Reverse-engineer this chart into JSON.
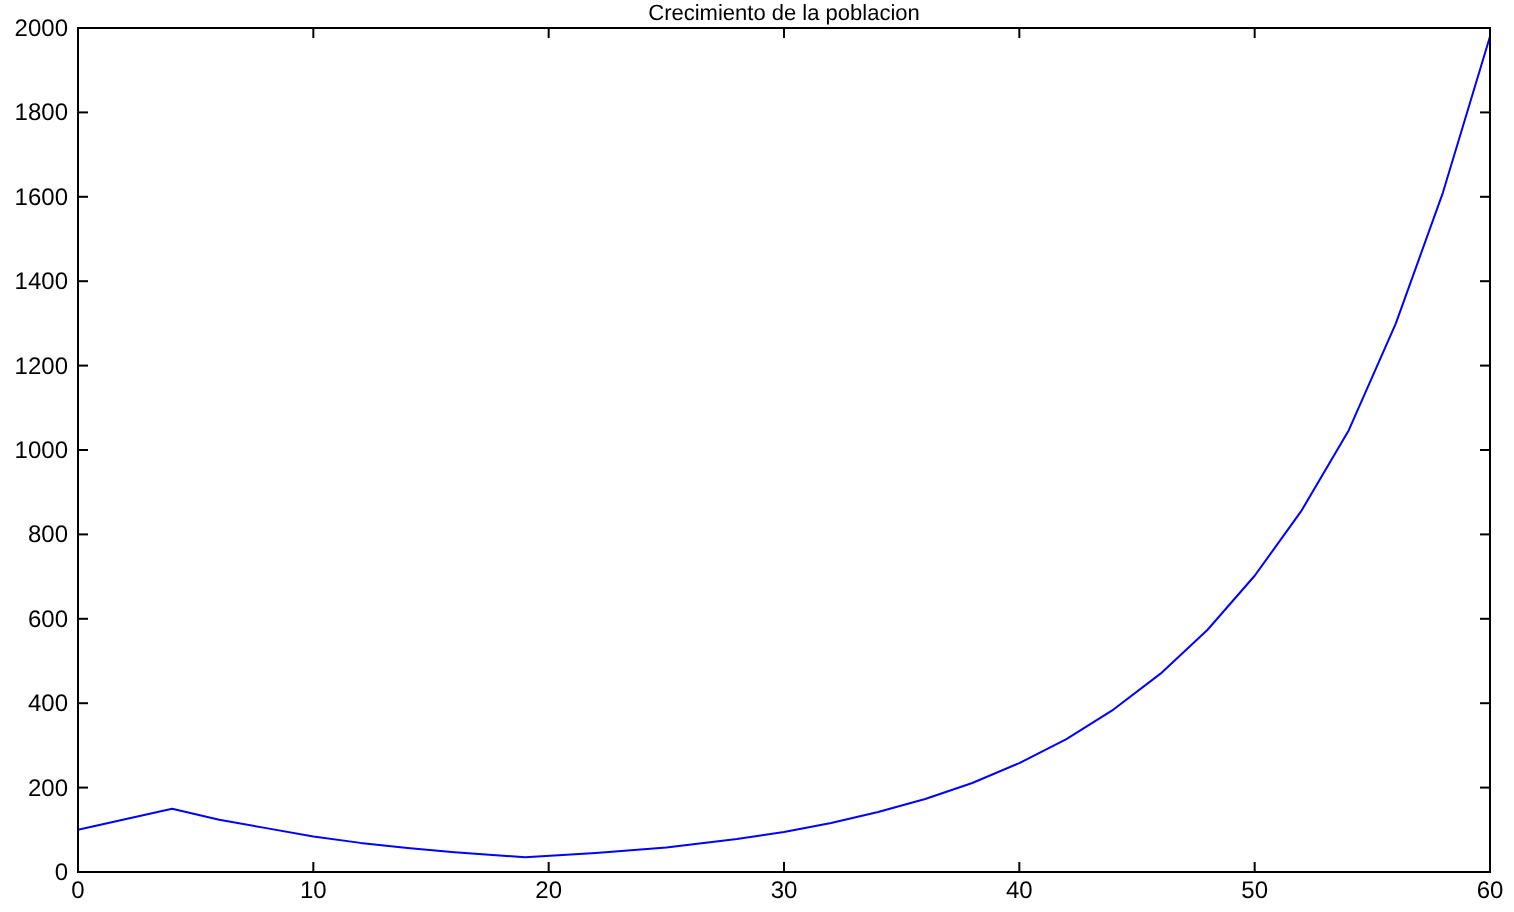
{
  "chart_data": {
    "type": "line",
    "title": "Crecimiento de la poblacion",
    "x": [
      0,
      2,
      4,
      6,
      8,
      10,
      12,
      14,
      16,
      19,
      22,
      25,
      28,
      30,
      32,
      34,
      36,
      38,
      40,
      42,
      44,
      46,
      48,
      50,
      52,
      54,
      56,
      58,
      60
    ],
    "series": [
      {
        "color": "#0000ff",
        "values": [
          100,
          125,
          150,
          124,
          104,
          84,
          69,
          57,
          47,
          35,
          45,
          58,
          78,
          95,
          116,
          142,
          173,
          211,
          258,
          315,
          385,
          470,
          574,
          702,
          857,
          1047,
          1300,
          1610,
          1980
        ]
      }
    ],
    "xlim": [
      0,
      60
    ],
    "xticks": [
      0,
      10,
      20,
      30,
      40,
      50,
      60
    ],
    "ylim": [
      0,
      2000
    ],
    "yticks": [
      0,
      200,
      400,
      600,
      800,
      1000,
      1200,
      1400,
      1600,
      1800,
      2000
    ],
    "grid": false,
    "marker": "none",
    "line_style": "solid"
  }
}
